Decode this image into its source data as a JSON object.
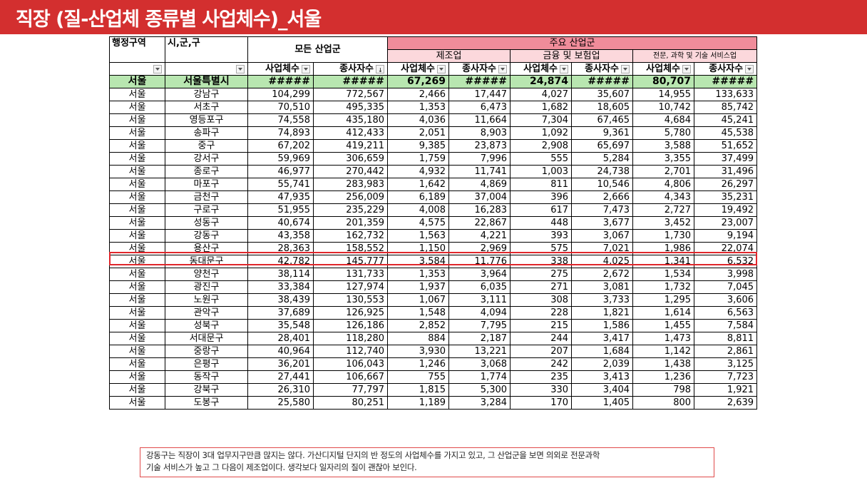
{
  "title": "직장  (질-산업체 종류별 사업체수)_서울",
  "header": {
    "region": "행정구역",
    "city": "시,군,구",
    "all_industries": "모든 산업군",
    "major_industries": "주요 산업군",
    "manufacturing": "제조업",
    "finance": "금융 및 보험업",
    "professional": "전문, 과학 및 기술 서비스업",
    "cols": [
      "사업체수",
      "종사자수",
      "사업체수",
      "종사자수",
      "사업체수",
      "종사자수",
      "사업체수",
      "종사자수"
    ]
  },
  "total": {
    "region": "서울",
    "name": "서울특별시",
    "values": [
      "#####",
      "#####",
      "67,269",
      "#####",
      "24,874",
      "#####",
      "80,707",
      "#####"
    ]
  },
  "rows": [
    {
      "region": "서울",
      "name": "강남구",
      "values": [
        "104,299",
        "772,567",
        "2,466",
        "17,447",
        "4,027",
        "35,607",
        "14,955",
        "133,633"
      ]
    },
    {
      "region": "서울",
      "name": "서초구",
      "values": [
        "70,510",
        "495,335",
        "1,353",
        "6,473",
        "1,682",
        "18,605",
        "10,742",
        "85,742"
      ]
    },
    {
      "region": "서울",
      "name": "영등포구",
      "values": [
        "74,558",
        "435,180",
        "4,036",
        "11,664",
        "7,304",
        "67,465",
        "4,684",
        "45,241"
      ]
    },
    {
      "region": "서울",
      "name": "송파구",
      "values": [
        "74,893",
        "412,433",
        "2,051",
        "8,903",
        "1,092",
        "9,361",
        "5,780",
        "45,538"
      ]
    },
    {
      "region": "서울",
      "name": "중구",
      "values": [
        "67,202",
        "419,211",
        "9,385",
        "23,873",
        "2,908",
        "65,697",
        "3,588",
        "51,652"
      ]
    },
    {
      "region": "서울",
      "name": "강서구",
      "values": [
        "59,969",
        "306,659",
        "1,759",
        "7,996",
        "555",
        "5,284",
        "3,355",
        "37,499"
      ]
    },
    {
      "region": "서울",
      "name": "종로구",
      "values": [
        "46,977",
        "270,442",
        "4,932",
        "11,741",
        "1,003",
        "24,738",
        "2,701",
        "31,496"
      ]
    },
    {
      "region": "서울",
      "name": "마포구",
      "values": [
        "55,741",
        "283,983",
        "1,642",
        "4,869",
        "811",
        "10,546",
        "4,806",
        "26,297"
      ]
    },
    {
      "region": "서울",
      "name": "금천구",
      "values": [
        "47,935",
        "256,009",
        "6,189",
        "37,004",
        "396",
        "2,666",
        "4,343",
        "35,231"
      ]
    },
    {
      "region": "서울",
      "name": "구로구",
      "values": [
        "51,955",
        "235,229",
        "4,008",
        "16,283",
        "617",
        "7,473",
        "2,727",
        "19,492"
      ]
    },
    {
      "region": "서울",
      "name": "성동구",
      "values": [
        "40,674",
        "201,359",
        "4,575",
        "22,867",
        "448",
        "3,677",
        "3,452",
        "23,007"
      ]
    },
    {
      "region": "서울",
      "name": "강동구",
      "values": [
        "43,358",
        "162,732",
        "1,563",
        "4,221",
        "393",
        "3,067",
        "1,730",
        "9,194"
      ]
    },
    {
      "region": "서울",
      "name": "용산구",
      "values": [
        "28,363",
        "158,552",
        "1,150",
        "2,969",
        "575",
        "7,021",
        "1,986",
        "22,074"
      ]
    },
    {
      "region": "서울",
      "name": "동대문구",
      "values": [
        "42,782",
        "145,777",
        "3,584",
        "11,776",
        "338",
        "4,025",
        "1,341",
        "6,532"
      ]
    },
    {
      "region": "서울",
      "name": "양천구",
      "values": [
        "38,114",
        "131,733",
        "1,353",
        "3,964",
        "275",
        "2,672",
        "1,534",
        "3,998"
      ]
    },
    {
      "region": "서울",
      "name": "광진구",
      "values": [
        "33,384",
        "127,974",
        "1,937",
        "6,035",
        "271",
        "3,081",
        "1,732",
        "7,045"
      ]
    },
    {
      "region": "서울",
      "name": "노원구",
      "values": [
        "38,439",
        "130,553",
        "1,067",
        "3,111",
        "308",
        "3,733",
        "1,295",
        "3,606"
      ]
    },
    {
      "region": "서울",
      "name": "관악구",
      "values": [
        "37,689",
        "126,925",
        "1,548",
        "4,094",
        "228",
        "1,821",
        "1,614",
        "6,563"
      ]
    },
    {
      "region": "서울",
      "name": "성북구",
      "values": [
        "35,548",
        "126,186",
        "2,852",
        "7,795",
        "215",
        "1,586",
        "1,455",
        "7,584"
      ]
    },
    {
      "region": "서울",
      "name": "서대문구",
      "values": [
        "28,401",
        "118,280",
        "884",
        "2,187",
        "244",
        "3,417",
        "1,473",
        "8,811"
      ]
    },
    {
      "region": "서울",
      "name": "중랑구",
      "values": [
        "40,964",
        "112,740",
        "3,930",
        "13,221",
        "207",
        "1,684",
        "1,142",
        "2,861"
      ]
    },
    {
      "region": "서울",
      "name": "은평구",
      "values": [
        "36,201",
        "106,043",
        "1,246",
        "3,068",
        "242",
        "2,039",
        "1,438",
        "3,125"
      ]
    },
    {
      "region": "서울",
      "name": "동작구",
      "values": [
        "27,441",
        "106,667",
        "755",
        "1,774",
        "235",
        "3,413",
        "1,236",
        "7,723"
      ]
    },
    {
      "region": "서울",
      "name": "강북구",
      "values": [
        "26,310",
        "77,797",
        "1,815",
        "5,300",
        "330",
        "3,404",
        "798",
        "1,921"
      ]
    },
    {
      "region": "서울",
      "name": "도봉구",
      "values": [
        "25,580",
        "80,251",
        "1,189",
        "3,284",
        "170",
        "1,405",
        "800",
        "2,639"
      ]
    }
  ],
  "note": {
    "line1": "강동구는 직장이 3대 업무지구만큼 많지는 않다. 가산디지털 단지의 반 정도의 사업체수를 가지고 있고, 그 산업군을 보면 의외로 전문과학",
    "line2": "기술 서비스가 높고 그 다음이 제조업이다. 생각보다 일자리의 질이 괜찮아 보인다."
  },
  "colors": {
    "title_bg": "#d32f2f",
    "major_bg": "#f08c9a",
    "sub_bg": "#fcd8dc",
    "total_bg": "#b8e6b0",
    "highlight": "#e0262b"
  }
}
